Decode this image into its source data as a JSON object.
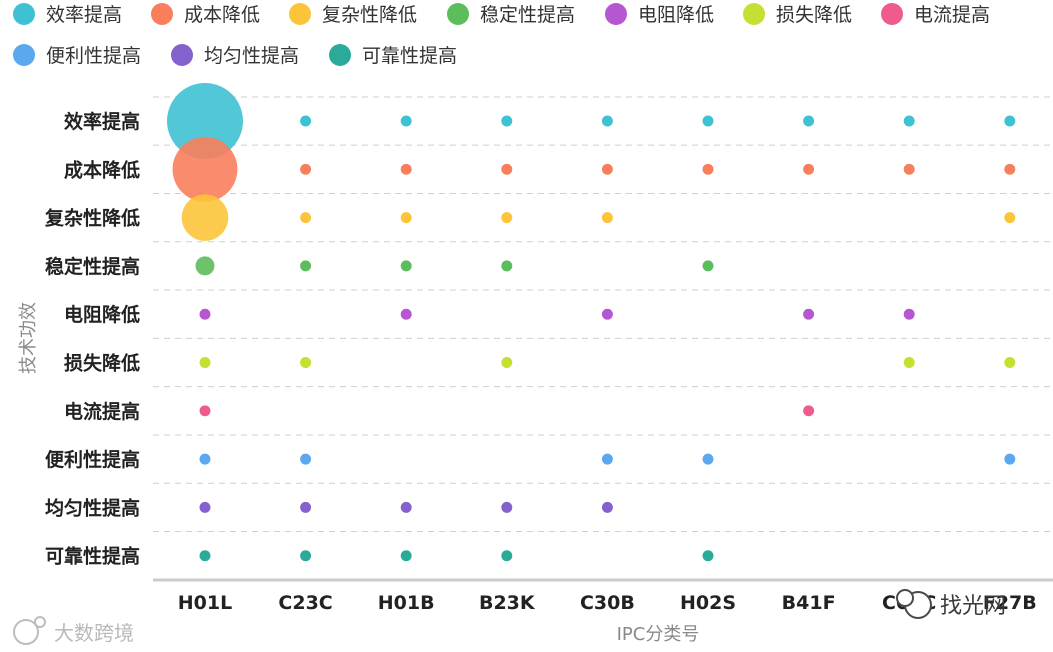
{
  "chart_data": {
    "type": "scatter",
    "xlabel": "IPC分类号",
    "ylabel": "技术功效",
    "categories": [
      "H01L",
      "C23C",
      "H01B",
      "B23K",
      "C30B",
      "H02S",
      "B41F",
      "C04C",
      "F27B"
    ],
    "series": [
      {
        "name": "效率提高",
        "color": "#3fc1d4",
        "values": [
          48,
          1,
          1,
          1,
          1,
          1,
          1,
          1,
          1
        ]
      },
      {
        "name": "成本降低",
        "color": "#f97e5c",
        "values": [
          35,
          1,
          1,
          1,
          1,
          1,
          1,
          1,
          1
        ]
      },
      {
        "name": "复杂性降低",
        "color": "#fcc439",
        "values": [
          18,
          1,
          1,
          1,
          1,
          0,
          0,
          0,
          1
        ]
      },
      {
        "name": "稳定性提高",
        "color": "#5cbd5c",
        "values": [
          3,
          1,
          1,
          1,
          0,
          1,
          0,
          0,
          0
        ]
      },
      {
        "name": "电阻降低",
        "color": "#b557d1",
        "values": [
          1,
          0,
          1,
          0,
          1,
          0,
          1,
          1,
          0
        ]
      },
      {
        "name": "损失降低",
        "color": "#c7de32",
        "values": [
          1,
          1,
          0,
          1,
          0,
          0,
          0,
          1,
          1
        ]
      },
      {
        "name": "电流提高",
        "color": "#ef5b8c",
        "values": [
          1,
          0,
          0,
          0,
          0,
          0,
          1,
          0,
          0
        ]
      },
      {
        "name": "便利性提高",
        "color": "#5ba8ef",
        "values": [
          1,
          1,
          0,
          0,
          1,
          1,
          0,
          0,
          1
        ]
      },
      {
        "name": "均匀性提高",
        "color": "#8461cc",
        "values": [
          1,
          1,
          1,
          1,
          1,
          0,
          0,
          0,
          0
        ]
      },
      {
        "name": "可靠性提高",
        "color": "#2aab99",
        "values": [
          1,
          1,
          1,
          1,
          0,
          1,
          0,
          0,
          0
        ]
      }
    ],
    "grid": true,
    "legend_position": "top"
  },
  "watermarks": {
    "left": "大数跨境",
    "right": "找光网"
  }
}
